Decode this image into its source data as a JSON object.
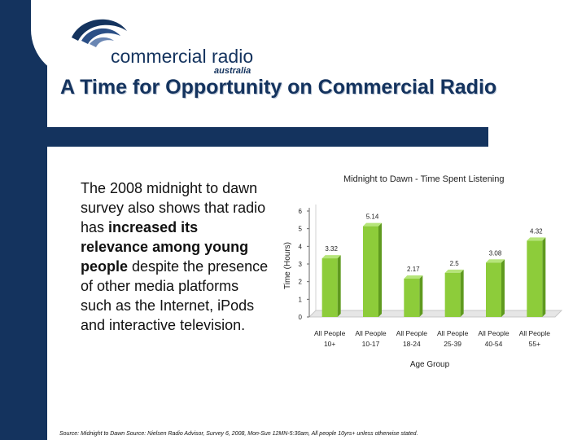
{
  "logo": {
    "brand": "commercial radio",
    "sub": "australia"
  },
  "title": "A Time for Opportunity on Commercial Radio",
  "body": {
    "intro": "The 2008 midnight to dawn survey also shows that radio has ",
    "bold1": "increased its relevance among young people",
    "outro": " despite the presence of other media platforms such as the Internet, iPods and interactive television."
  },
  "source": "Source: Midnight to Dawn Source: Nielsen Radio Advisor, Survey 6, 2008, Mon-Sun 12MN-5:30am, All people 10yrs+ unless otherwise stated.",
  "colors": {
    "navy": "#14335e",
    "bar": "#8dcc3a",
    "bar_dark": "#5f9a1f"
  },
  "chart_data": {
    "type": "bar",
    "title": "Midnight to Dawn - Time Spent Listening",
    "xlabel": "Age Group",
    "ylabel": "Time (Hours)",
    "ylim": [
      0,
      6
    ],
    "yticks": [
      0,
      1,
      2,
      3,
      4,
      5,
      6
    ],
    "categories": [
      [
        "All People",
        "10+"
      ],
      [
        "All People",
        "10-17"
      ],
      [
        "All People",
        "18-24"
      ],
      [
        "All People",
        "25-39"
      ],
      [
        "All People",
        "40-54"
      ],
      [
        "All People",
        "55+"
      ]
    ],
    "values": [
      3.32,
      5.14,
      2.17,
      2.5,
      3.08,
      4.32
    ],
    "value_labels": [
      "3.32",
      "5.14",
      "2.17",
      "2.5",
      "3.08",
      "4.32"
    ],
    "grid": false
  }
}
